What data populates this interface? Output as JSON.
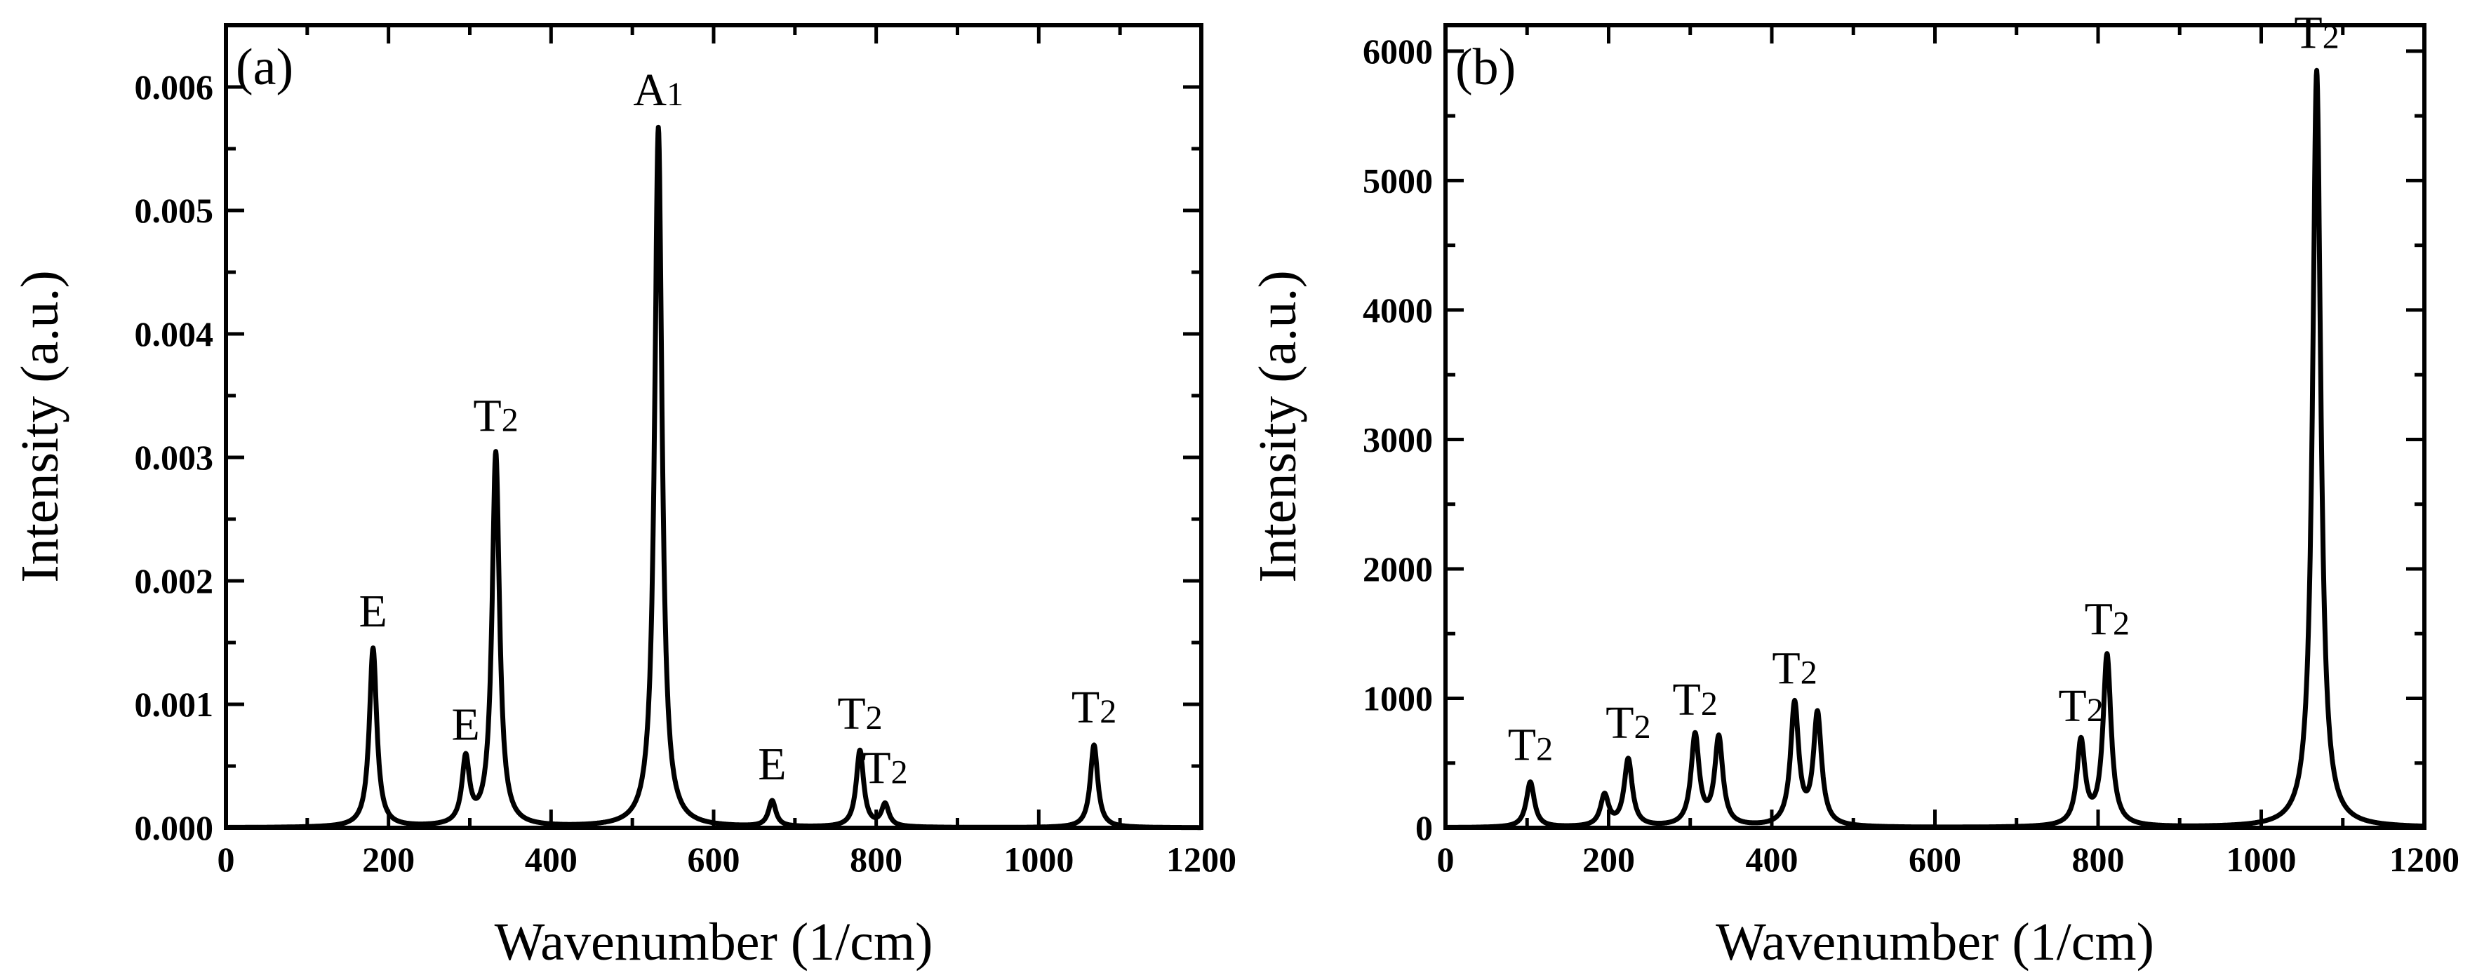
{
  "chart_data": [
    {
      "type": "line",
      "panel_label": "(a)",
      "xlabel": "Wavenumber (1/cm)",
      "ylabel": "Intensity (a.u.)",
      "xlim": [
        0,
        1200
      ],
      "ylim": [
        0,
        0.0065
      ],
      "x_ticks": [
        {
          "value": 0,
          "label": "0"
        },
        {
          "value": 200,
          "label": "200"
        },
        {
          "value": 400,
          "label": "400"
        },
        {
          "value": 600,
          "label": "600"
        },
        {
          "value": 800,
          "label": "800"
        },
        {
          "value": 1000,
          "label": "1000"
        },
        {
          "value": 1200,
          "label": "1200"
        }
      ],
      "x_minor_step": 100,
      "y_ticks": [
        {
          "value": 0,
          "label": "0.000"
        },
        {
          "value": 0.001,
          "label": "0.001"
        },
        {
          "value": 0.002,
          "label": "0.002"
        },
        {
          "value": 0.003,
          "label": "0.003"
        },
        {
          "value": 0.004,
          "label": "0.004"
        },
        {
          "value": 0.005,
          "label": "0.005"
        },
        {
          "value": 0.006,
          "label": "0.006"
        }
      ],
      "y_minor_step": 0.0005,
      "linewidth": 5,
      "peaks": [
        {
          "x": 181,
          "y": 0.00145,
          "label": "E",
          "sub": ""
        },
        {
          "x": 295,
          "y": 0.00053,
          "label": "E",
          "sub": ""
        },
        {
          "x": 332,
          "y": 0.00303,
          "label": "T",
          "sub": "2"
        },
        {
          "x": 532,
          "y": 0.00567,
          "label": "A",
          "sub": "1"
        },
        {
          "x": 672,
          "y": 0.00021,
          "label": "E",
          "sub": ""
        },
        {
          "x": 780,
          "y": 0.00062,
          "label": "T",
          "sub": "2"
        },
        {
          "x": 811,
          "y": 0.00018,
          "label": "T",
          "sub": "2"
        },
        {
          "x": 1068,
          "y": 0.00067,
          "label": "T",
          "sub": "2"
        }
      ]
    },
    {
      "type": "line",
      "panel_label": "(b)",
      "xlabel": "Wavenumber (1/cm)",
      "ylabel": "Intensity (a.u.)",
      "xlim": [
        0,
        1200
      ],
      "ylim": [
        0,
        6200
      ],
      "x_ticks": [
        {
          "value": 0,
          "label": "0"
        },
        {
          "value": 200,
          "label": "200"
        },
        {
          "value": 400,
          "label": "400"
        },
        {
          "value": 600,
          "label": "600"
        },
        {
          "value": 800,
          "label": "800"
        },
        {
          "value": 1000,
          "label": "1000"
        },
        {
          "value": 1200,
          "label": "1200"
        }
      ],
      "x_minor_step": 100,
      "y_ticks": [
        {
          "value": 0,
          "label": "0"
        },
        {
          "value": 1000,
          "label": "1000"
        },
        {
          "value": 2000,
          "label": "2000"
        },
        {
          "value": 3000,
          "label": "3000"
        },
        {
          "value": 4000,
          "label": "4000"
        },
        {
          "value": 5000,
          "label": "5000"
        },
        {
          "value": 6000,
          "label": "6000"
        }
      ],
      "y_minor_step": 500,
      "linewidth": 5,
      "peaks": [
        {
          "x": 104,
          "y": 350,
          "label": "T",
          "sub": "2"
        },
        {
          "x": 195,
          "y": 240,
          "label": "",
          "sub": ""
        },
        {
          "x": 224,
          "y": 520,
          "label": "T",
          "sub": "2"
        },
        {
          "x": 306,
          "y": 700,
          "label": "T",
          "sub": "2"
        },
        {
          "x": 335,
          "y": 680,
          "label": "",
          "sub": ""
        },
        {
          "x": 428,
          "y": 940,
          "label": "T",
          "sub": "2"
        },
        {
          "x": 456,
          "y": 860,
          "label": "",
          "sub": ""
        },
        {
          "x": 779,
          "y": 650,
          "label": "T",
          "sub": "2"
        },
        {
          "x": 811,
          "y": 1320,
          "label": "T",
          "sub": "2"
        },
        {
          "x": 1068,
          "y": 5850,
          "label": "T",
          "sub": "2"
        }
      ]
    }
  ]
}
